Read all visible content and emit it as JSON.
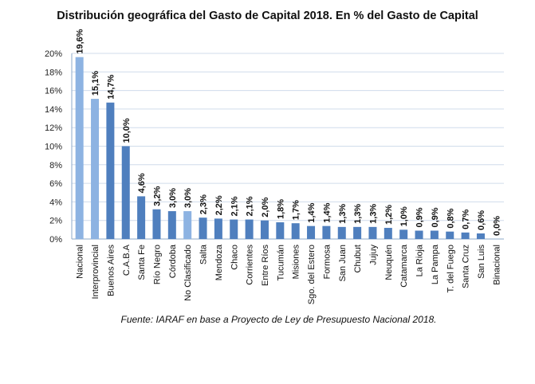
{
  "chart_data": {
    "type": "bar",
    "title": "Distribución geográfica del Gasto de Capital 2018. En % del Gasto de Capital",
    "source": "Fuente: IARAF en base a Proyecto de Ley de Presupuesto Nacional 2018.",
    "xlabel": "",
    "ylabel": "",
    "ylim": [
      0,
      20
    ],
    "yticks": [
      "0%",
      "2%",
      "4%",
      "6%",
      "8%",
      "10%",
      "12%",
      "14%",
      "16%",
      "18%",
      "20%"
    ],
    "grid": true,
    "categories": [
      "Nacional",
      "Interprovincial",
      "Buenos Aires",
      "C.A.B.A",
      "Santa Fe",
      "Río Negro",
      "Córdoba",
      "No Clasificado",
      "Salta",
      "Mendoza",
      "Chaco",
      "Corrientes",
      "Entre Ríos",
      "Tucumán",
      "Misiones",
      "Sgo. del Estero",
      "Formosa",
      "San Juan",
      "Chubut",
      "Jujuy",
      "Neuquén",
      "Catamarca",
      "La Rioja",
      "La Pampa",
      "T. del Fuego",
      "Santa Cruz",
      "San Luis",
      "Binacional"
    ],
    "values": [
      19.6,
      15.1,
      14.7,
      10.0,
      4.6,
      3.2,
      3.0,
      3.0,
      2.3,
      2.2,
      2.1,
      2.1,
      2.0,
      1.8,
      1.7,
      1.4,
      1.4,
      1.3,
      1.3,
      1.3,
      1.2,
      1.0,
      0.9,
      0.9,
      0.8,
      0.7,
      0.6,
      0.0
    ],
    "data_labels": [
      "19,6%",
      "15,1%",
      "14,7%",
      "10,0%",
      "4,6%",
      "3,2%",
      "3,0%",
      "3,0%",
      "2,3%",
      "2,2%",
      "2,1%",
      "2,1%",
      "2,0%",
      "1,8%",
      "1,7%",
      "1,4%",
      "1,4%",
      "1,3%",
      "1,3%",
      "1,3%",
      "1,2%",
      "1,0%",
      "0,9%",
      "0,9%",
      "0,8%",
      "0,7%",
      "0,6%",
      "0,0%"
    ],
    "light_categories": [
      "Nacional",
      "Interprovincial",
      "No Clasificado"
    ],
    "colors": {
      "dark": "#4F7FBE",
      "light": "#8DB3E2",
      "grid": "#D0DCEB",
      "axis": "#8EA8C8"
    }
  }
}
